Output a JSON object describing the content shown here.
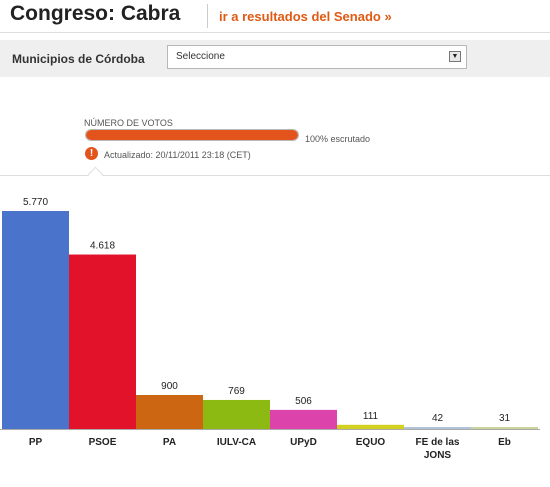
{
  "header": {
    "title": "Congreso: Cabra",
    "senate_link": "ir a resultados del Senado »"
  },
  "filter": {
    "label": "Municipios de Córdoba",
    "selected": "Seleccione"
  },
  "status": {
    "progress_label": "NÚMERO DE VOTOS",
    "progress_fraction": 1.0,
    "scrutiny_text": "100% escrutado",
    "updated_text": "Actualizado: 20/11/2011 23:18 (CET)"
  },
  "chart_data": {
    "type": "bar",
    "categories": [
      "PP",
      "PSOE",
      "PA",
      "IULV-CA",
      "UPyD",
      "EQUO",
      "FE de las JONS",
      "Eb"
    ],
    "tick_lines": [
      [
        "PP"
      ],
      [
        "PSOE"
      ],
      [
        "PA"
      ],
      [
        "IULV-CA"
      ],
      [
        "UPyD"
      ],
      [
        "EQUO"
      ],
      [
        "FE de las",
        "JONS"
      ],
      [
        "Eb"
      ]
    ],
    "values": [
      5770,
      4618,
      900,
      769,
      506,
      111,
      42,
      31
    ],
    "value_labels": [
      "5.770",
      "4.618",
      "900",
      "769",
      "506",
      "111",
      "42",
      "31"
    ],
    "colors": [
      "#4a74cc",
      "#e3122b",
      "#cc6612",
      "#8dba12",
      "#dc44ac",
      "#d2d020",
      "#b0c3d8",
      "#c8d49c"
    ],
    "ylim": [
      0,
      5770
    ],
    "grid": false,
    "title": "",
    "xlabel": "",
    "ylabel": ""
  }
}
